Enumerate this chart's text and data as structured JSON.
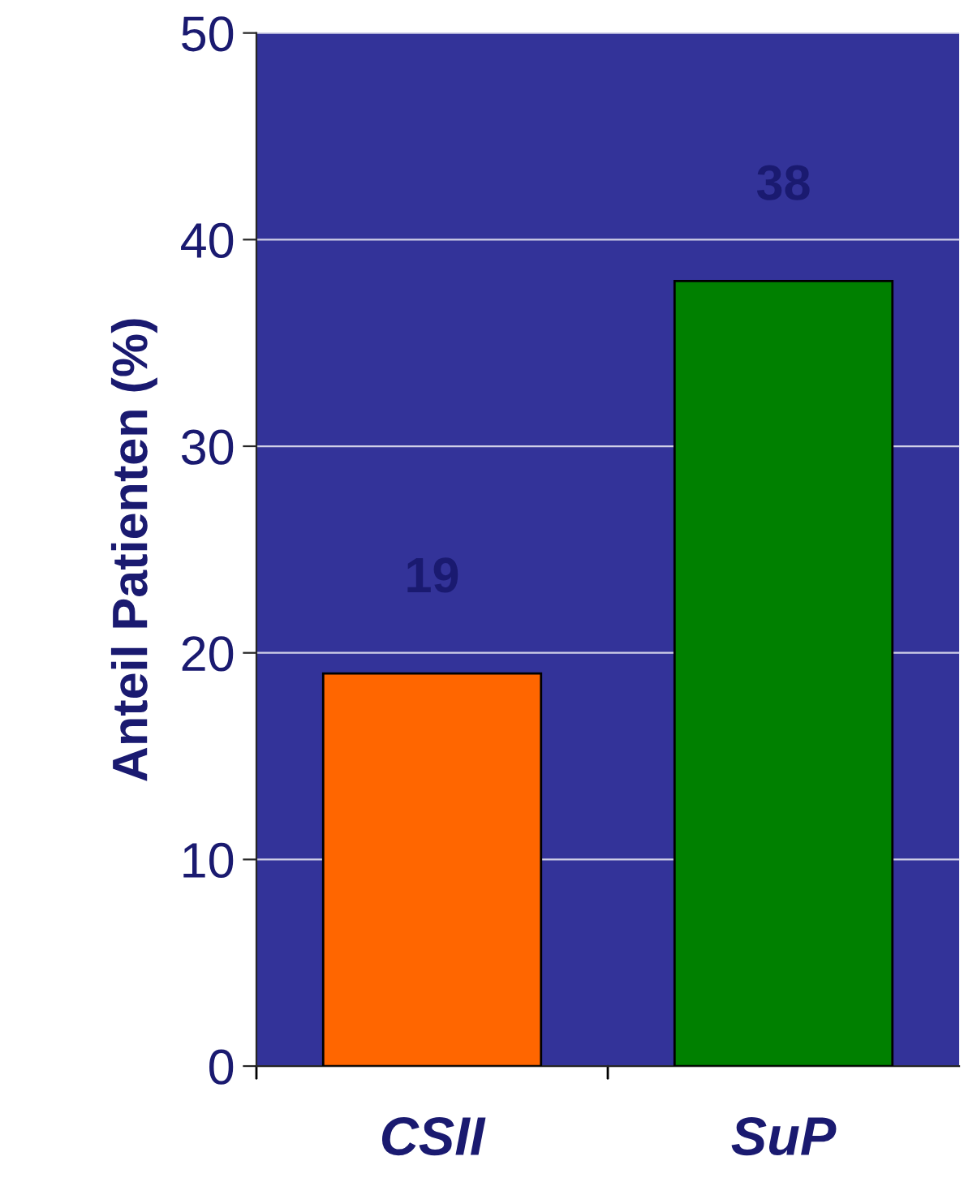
{
  "chart_data": {
    "type": "bar",
    "ylabel": "Anteil Patienten (%)",
    "categories": [
      "CSII",
      "SuP"
    ],
    "series": [
      {
        "values": [
          19,
          38
        ],
        "colors": [
          "#ff6600",
          "#008000"
        ]
      }
    ],
    "ylim": [
      0,
      50
    ],
    "yticks": [
      0,
      10,
      20,
      30,
      40,
      50
    ],
    "grid": "y",
    "data_labels": true
  }
}
